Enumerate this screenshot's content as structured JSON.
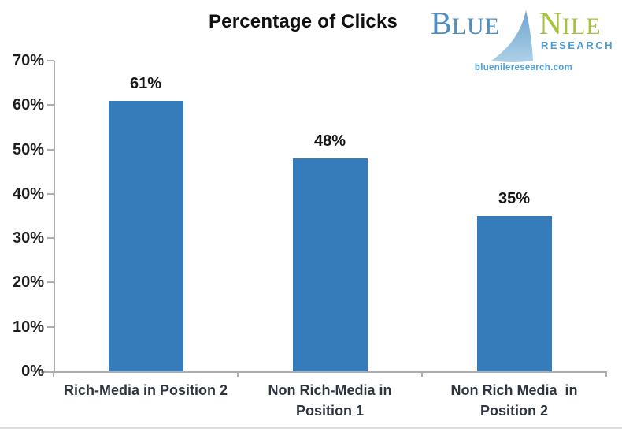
{
  "header": {
    "title": "Percentage of Clicks"
  },
  "logo": {
    "word1_initial": "B",
    "word1_rest": "LUE",
    "word2_initial": "N",
    "word2_rest": "ILE",
    "subtitle": "RESEARCH",
    "website": "bluenileresearch.com",
    "colors": {
      "blue_word": "#4a8fc7",
      "green_word": "#a5c33e",
      "subtitle": "#4e9bd4",
      "website": "#4ba2dc",
      "sail_top": "#6fa4d0",
      "sail_bottom": "#aed0e7"
    }
  },
  "chart_data": {
    "type": "bar",
    "title": "Percentage of Clicks",
    "categories": [
      "Rich-Media in Position 2",
      "Non Rich-Media in Position 1",
      "Non Rich Media  in Position 2"
    ],
    "category_lines": [
      [
        "Rich-Media in Position 2"
      ],
      [
        "Non Rich-Media in",
        "Position 1"
      ],
      [
        "Non Rich Media  in",
        "Position 2"
      ]
    ],
    "values": [
      61,
      48,
      35
    ],
    "value_labels": [
      "61%",
      "48%",
      "35%"
    ],
    "xlabel": "",
    "ylabel": "",
    "ylim": [
      0,
      70
    ],
    "ytick_step": 10,
    "ytick_labels": [
      "0%",
      "10%",
      "20%",
      "30%",
      "40%",
      "50%",
      "60%",
      "70%"
    ],
    "grid": false,
    "legend": false,
    "bar_color": "#377cba",
    "axis_color": "#aeaeae"
  }
}
